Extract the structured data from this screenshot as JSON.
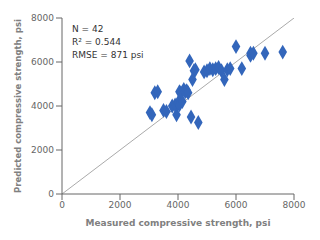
{
  "chart_data": {
    "type": "scatter",
    "x_label": "Measured compressive strength, psi",
    "y_label": "Predicted compressive strength, psi",
    "annotation": "N = 42\nR² = 0.544\nRMSE = 871 psi",
    "series": [
      {
        "type": "line",
        "x": [
          0,
          8000
        ],
        "values": [
          0,
          8000
        ],
        "color": "#aaaaaa"
      },
      {
        "type": "scatter",
        "marker": "diamond",
        "color": "#3366BB",
        "x": [
          3034,
          3100,
          3200,
          3300,
          3500,
          3600,
          3800,
          3900,
          3950,
          4000,
          4000,
          4050,
          4050,
          4100,
          4150,
          4200,
          4250,
          4300,
          4350,
          4400,
          4450,
          4500,
          4550,
          4600,
          4700,
          4900,
          5000,
          5100,
          5200,
          5300,
          5400,
          5500,
          5600,
          5700,
          5800,
          6000,
          6200,
          6500,
          6500,
          6600,
          7000,
          7611
        ],
        "values": [
          3700,
          3600,
          4600,
          4650,
          3800,
          3750,
          4000,
          4050,
          3600,
          4100,
          4150,
          4650,
          4050,
          4600,
          4200,
          4750,
          4650,
          4700,
          4600,
          6050,
          3500,
          5200,
          5600,
          5650,
          3250,
          5550,
          5600,
          5700,
          5650,
          5700,
          5750,
          5600,
          5200,
          5650,
          5700,
          6700,
          5700,
          6300,
          6400,
          6400,
          6400,
          6450
        ]
      }
    ],
    "xlim": [
      0,
      8000
    ],
    "ylim": [
      0,
      8000
    ],
    "xticks": [
      0,
      2000,
      4000,
      6000,
      8000
    ],
    "yticks": [
      0,
      2000,
      4000,
      6000,
      8000
    ],
    "grid": false
  }
}
